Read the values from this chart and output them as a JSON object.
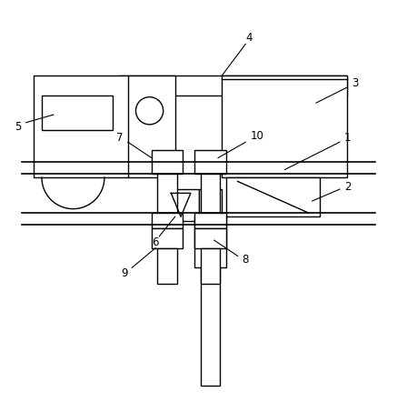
{
  "bg_color": "#ffffff",
  "line_color": "#000000",
  "lw": 1.0,
  "fig_width": 4.37,
  "fig_height": 4.42,
  "dpi": 100
}
